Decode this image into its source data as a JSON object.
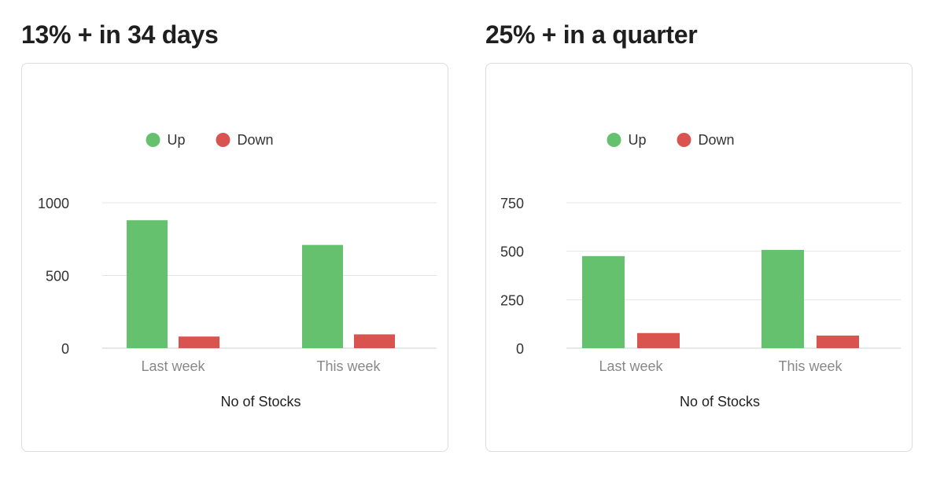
{
  "colors": {
    "up": "#66c16e",
    "down": "#d9534f",
    "grid": "#e4e4e4"
  },
  "chart_data": [
    {
      "type": "bar",
      "title": "13% + in 34 days",
      "categories": [
        "Last week",
        "This week"
      ],
      "series": [
        {
          "name": "Up",
          "values": [
            880,
            710
          ]
        },
        {
          "name": "Down",
          "values": [
            80,
            95
          ]
        }
      ],
      "xlabel": "No of Stocks",
      "ylabel": "",
      "ylim": [
        0,
        1000
      ],
      "yticks": [
        0,
        500,
        1000
      ],
      "legend": "top-center",
      "grid": true
    },
    {
      "type": "bar",
      "title": "25% + in a quarter",
      "categories": [
        "Last week",
        "This week"
      ],
      "series": [
        {
          "name": "Up",
          "values": [
            475,
            507
          ]
        },
        {
          "name": "Down",
          "values": [
            78,
            65
          ]
        }
      ],
      "xlabel": "No of Stocks",
      "ylabel": "",
      "ylim": [
        0,
        750
      ],
      "yticks": [
        0,
        250,
        500,
        750
      ],
      "legend": "top-center",
      "grid": true
    }
  ]
}
